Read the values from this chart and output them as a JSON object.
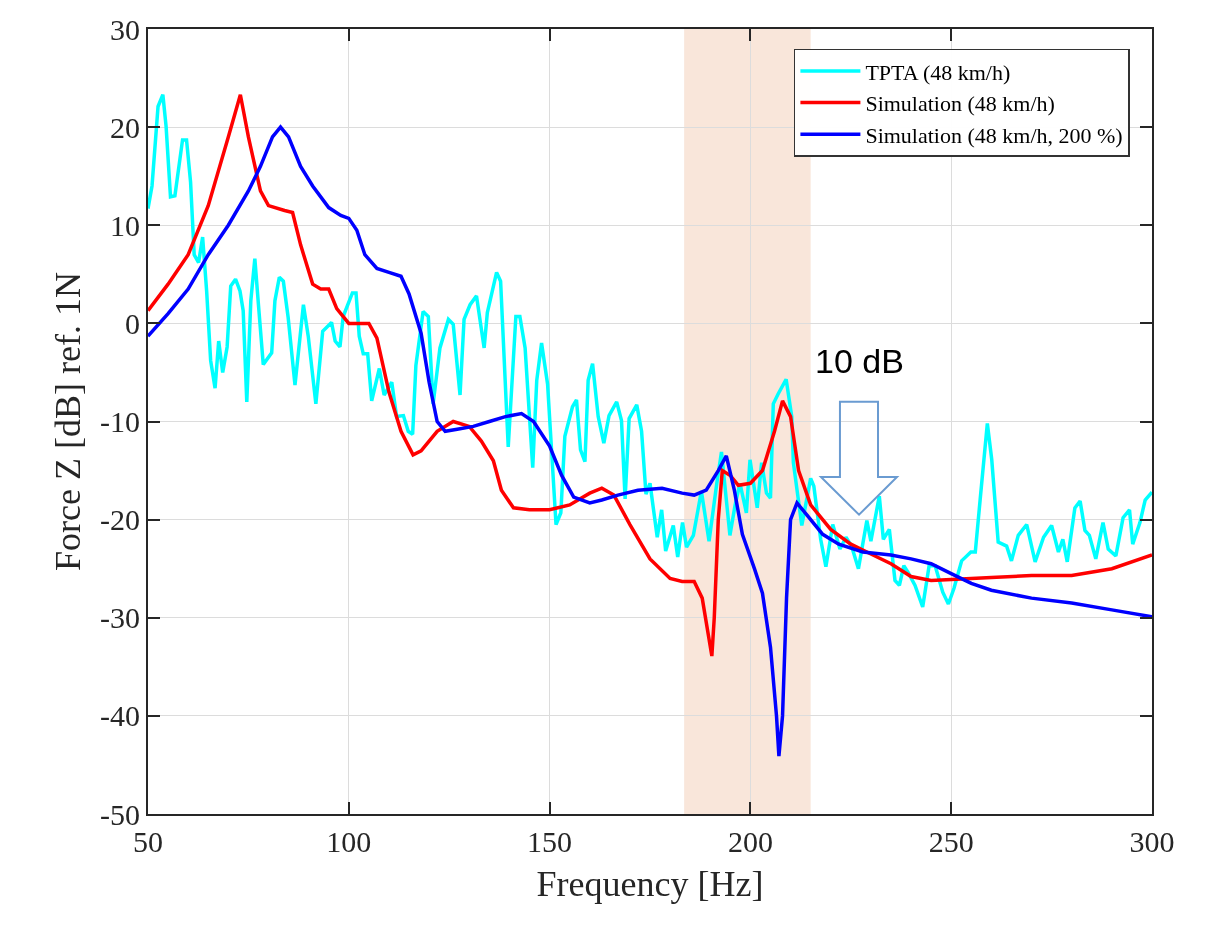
{
  "chart_data": {
    "type": "line",
    "xlabel": "Frequency [Hz]",
    "ylabel": "Force Z [dB] ref. 1N",
    "xlim": [
      50,
      300
    ],
    "xticks": [
      50,
      100,
      150,
      200,
      250,
      300
    ],
    "ylim": [
      -50,
      30
    ],
    "yticks": [
      -50,
      -40,
      -30,
      -20,
      -10,
      0,
      10,
      20,
      30
    ],
    "grid": true,
    "legend": "top right",
    "marker": "none",
    "line_style": "solid",
    "bands": [
      {
        "axis": "x",
        "from": 183.5,
        "to": 215,
        "color": "#f9e6da"
      }
    ],
    "annotations": [
      "10 dB"
    ],
    "series": [
      {
        "name": "TPTA (48 km/h)",
        "color": "#00ffff",
        "x": [
          50,
          51,
          52.5,
          53.7,
          54.5,
          55.6,
          56.7,
          58.6,
          59.6,
          60.6,
          61.5,
          62.6,
          63.6,
          64.6,
          65.6,
          66.7,
          67.6,
          68.6,
          69.7,
          70.6,
          71.8,
          72.9,
          73.7,
          74.6,
          75.6,
          76.6,
          77.5,
          78.7,
          80.8,
          81.6,
          82.7,
          83.7,
          84.9,
          86.6,
          88.7,
          89.9,
          91.8,
          93.5,
          95.7,
          96.6,
          97.8,
          98.6,
          100.9,
          101.8,
          102.6,
          103.6,
          104.7,
          105.7,
          107.6,
          108.8,
          110.7,
          111.9,
          113.6,
          114.8,
          115.9,
          116.7,
          118.5,
          119.8,
          121,
          122.7,
          124.8,
          126,
          127.7,
          128.7,
          130.2,
          131.8,
          133.7,
          134.5,
          136.8,
          137.8,
          139.7,
          141.6,
          142.6,
          143.9,
          145.8,
          146.8,
          148,
          149.5,
          151.6,
          152.8,
          153.8,
          155.7,
          156.7,
          157.7,
          158.8,
          159.6,
          160.7,
          162.1,
          163.5,
          164.8,
          166.7,
          167.9,
          168.8,
          169.8,
          171.7,
          172.9,
          174,
          175,
          176.8,
          177.9,
          178.9,
          180.8,
          181.9,
          183.1,
          184.1,
          185.8,
          187.8,
          189.7,
          191.6,
          192.8,
          194.9,
          196.2,
          197.4,
          199,
          199.9,
          201.7,
          202.8,
          204,
          205,
          205.7,
          206.9,
          208.9,
          210.3,
          210.7,
          212.8,
          215,
          215.8,
          217.5,
          218.8,
          220.5,
          222.3,
          223.8,
          225.2,
          226.9,
          229,
          230,
          232.1,
          233.1,
          234.6,
          236,
          237.1,
          238.2,
          239.3,
          241,
          242.9,
          244.5,
          246,
          247.9,
          249.3,
          250.7,
          252.6,
          254.9,
          256,
          257.2,
          259,
          260.1,
          261.7,
          263.8,
          265,
          266.7,
          268.8,
          270.9,
          273,
          275,
          276.7,
          277.8,
          278.9,
          280.8,
          282.1,
          283.3,
          284.4,
          286,
          287.8,
          289.1,
          291,
          292.8,
          294.4,
          295.2,
          297,
          298.3,
          300
        ],
        "values": [
          11.7,
          14,
          22.1,
          23.3,
          20.1,
          12.9,
          13,
          18.7,
          18.7,
          14.4,
          7,
          6.2,
          8.8,
          3.3,
          -3.8,
          -6.6,
          -1.8,
          -5,
          -2.4,
          3.8,
          4.5,
          3.3,
          1.3,
          -8,
          2.3,
          6.6,
          1.9,
          -4.2,
          -3,
          2.3,
          4.7,
          4.3,
          0.6,
          -6.3,
          1.9,
          -1.3,
          -8.2,
          -0.8,
          0.1,
          -1.8,
          -2.4,
          0.7,
          3.1,
          3.1,
          -1.3,
          -3.1,
          -3.1,
          -7.9,
          -4.6,
          -7.3,
          -6,
          -9.5,
          -9.4,
          -11,
          -11.3,
          -4.3,
          1.2,
          0.7,
          -8.2,
          -2.5,
          0.4,
          -0.1,
          -7.3,
          0.4,
          1.9,
          2.8,
          -2.5,
          1.1,
          5.2,
          4.3,
          -12.6,
          0.7,
          0.7,
          -2.5,
          -14.7,
          -5.8,
          -2,
          -6.2,
          -20.5,
          -19.3,
          -11.5,
          -8.5,
          -7.8,
          -12.9,
          -14.1,
          -5.8,
          -4.1,
          -9.5,
          -12.2,
          -9.4,
          -8,
          -9.9,
          -17.9,
          -9.7,
          -8.3,
          -11,
          -17.4,
          -16.3,
          -21.8,
          -19,
          -23.2,
          -20.6,
          -23.8,
          -20.3,
          -22.8,
          -21.6,
          -17.1,
          -22.2,
          -16.4,
          -13.1,
          -21.6,
          -18.5,
          -16.3,
          -19.3,
          -13.9,
          -18.8,
          -14.2,
          -17.3,
          -17.8,
          -8.2,
          -7.2,
          -5.7,
          -9.5,
          -14.2,
          -20.6,
          -15.8,
          -16.6,
          -22,
          -24.8,
          -20.5,
          -23,
          -21.8,
          -22.7,
          -25,
          -20.1,
          -22.2,
          -17.6,
          -22,
          -21,
          -26.2,
          -26.7,
          -24.7,
          -25.4,
          -26.7,
          -28.9,
          -24.7,
          -24.7,
          -27.4,
          -28.6,
          -27,
          -24.2,
          -23.3,
          -23.3,
          -18,
          -10.2,
          -13.9,
          -22.3,
          -22.7,
          -24.2,
          -21.6,
          -20.5,
          -24.3,
          -21.8,
          -20.6,
          -23.3,
          -22,
          -24.3,
          -18.8,
          -18.1,
          -21.1,
          -21.6,
          -24,
          -20.3,
          -23,
          -23.7,
          -19.8,
          -19,
          -22.5,
          -20.3,
          -18,
          -17.2
        ]
      },
      {
        "name": "Simulation (48 km/h)",
        "color": "#ff0000",
        "x": [
          50,
          55,
          60,
          65,
          70,
          73,
          75,
          78,
          80,
          84,
          86,
          88,
          91,
          93,
          95,
          97,
          100,
          103,
          105,
          107,
          110,
          113,
          116,
          118,
          122,
          126,
          130,
          133,
          136,
          138,
          141,
          145,
          150,
          155,
          160,
          163,
          166,
          170,
          175,
          180,
          183,
          186,
          188,
          190.4,
          191,
          192,
          193,
          195,
          197,
          200,
          203,
          206,
          208,
          210,
          212,
          215,
          220,
          225,
          230,
          235,
          240,
          245,
          250,
          260,
          270,
          280,
          290,
          300
        ],
        "values": [
          1.3,
          4,
          7,
          12,
          19,
          23.3,
          19,
          13.5,
          12,
          11.5,
          11.3,
          8,
          4,
          3.5,
          3.5,
          1.5,
          0,
          0,
          0,
          -1.5,
          -7,
          -11,
          -13.4,
          -13,
          -11,
          -10,
          -10.5,
          -12,
          -14,
          -17,
          -18.8,
          -19,
          -19,
          -18.5,
          -17.3,
          -16.8,
          -17.5,
          -20.5,
          -24,
          -26,
          -26.3,
          -26.3,
          -28,
          -33.9,
          -30,
          -20,
          -15,
          -15.5,
          -16.5,
          -16.3,
          -15,
          -11,
          -7.9,
          -9.5,
          -15,
          -18.5,
          -21,
          -22.5,
          -23.5,
          -24.5,
          -25.8,
          -26.2,
          -26.1,
          -25.9,
          -25.7,
          -25.7,
          -25,
          -23.6
        ]
      },
      {
        "name": "Simulation (48 km/h, 200 %)",
        "color": "#0000ff",
        "x": [
          50,
          55,
          60,
          65,
          70,
          75,
          78,
          81,
          83,
          85,
          88,
          91,
          95,
          98,
          100,
          102,
          104,
          107,
          110,
          113,
          115,
          118,
          120,
          122,
          124,
          127,
          131,
          135,
          139,
          143,
          146,
          150,
          153,
          156,
          160,
          163,
          167,
          172,
          178,
          183,
          186,
          189,
          192,
          194,
          196,
          198,
          201,
          203,
          205,
          206.5,
          207.1,
          208,
          209,
          210,
          211.6,
          214,
          218,
          222,
          228,
          235,
          240,
          245,
          250,
          255,
          260,
          270,
          280,
          290,
          300
        ],
        "values": [
          -1.3,
          1,
          3.5,
          7,
          10,
          13.5,
          16,
          19,
          20,
          19,
          16,
          14,
          11.8,
          11,
          10.7,
          9.5,
          7,
          5.6,
          5.2,
          4.8,
          3,
          -1,
          -6,
          -10,
          -11,
          -10.8,
          -10.5,
          -10,
          -9.5,
          -9.2,
          -10,
          -12.5,
          -15.5,
          -17.7,
          -18.3,
          -18,
          -17.5,
          -17,
          -16.8,
          -17.3,
          -17.5,
          -17,
          -15,
          -13.5,
          -17,
          -21.5,
          -25,
          -27.5,
          -33,
          -40,
          -44.1,
          -40,
          -28,
          -20,
          -18.3,
          -19.5,
          -21.5,
          -22.5,
          -23.3,
          -23.6,
          -24,
          -24.5,
          -25.5,
          -26.5,
          -27.2,
          -28,
          -28.5,
          -29.2,
          -29.9
        ]
      }
    ]
  }
}
